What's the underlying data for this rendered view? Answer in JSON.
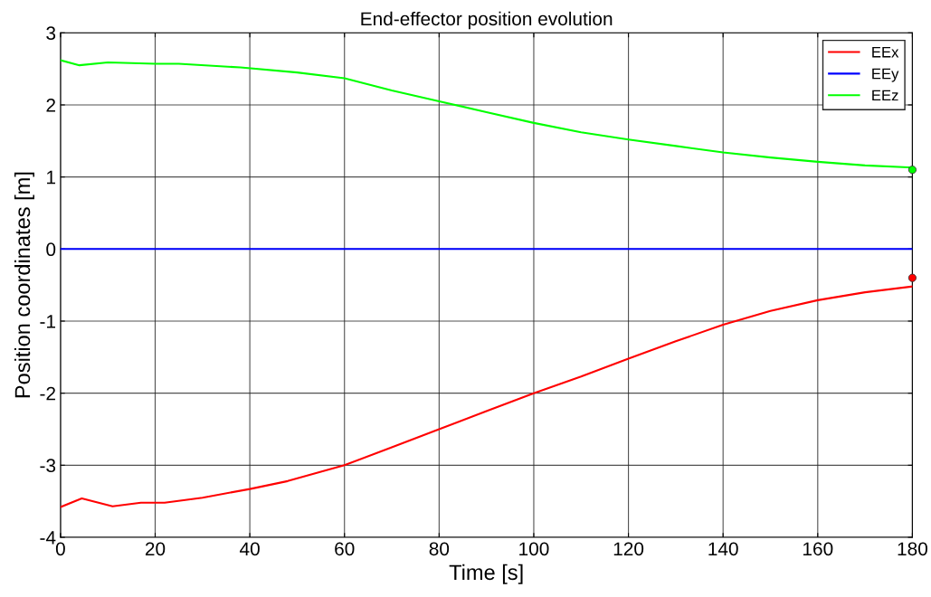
{
  "chart_data": {
    "type": "line",
    "title": "End-effector position evolution",
    "xlabel": "Time [s]",
    "ylabel": "Position coordinates [m]",
    "x": [
      0,
      4,
      10,
      20,
      25,
      38,
      50,
      60,
      70,
      80,
      90,
      100,
      110,
      120,
      130,
      140,
      150,
      160,
      170,
      180
    ],
    "series": [
      {
        "name": "EEx",
        "color": "#ff0000",
        "x": [
          0,
          4.5,
          11,
          17,
          22,
          30,
          40,
          48,
          60,
          70,
          80,
          90,
          100,
          110,
          120,
          130,
          140,
          150,
          160,
          170,
          180
        ],
        "values": [
          -3.58,
          -3.46,
          -3.57,
          -3.52,
          -3.52,
          -3.45,
          -3.33,
          -3.22,
          -3.0,
          -2.75,
          -2.5,
          -2.25,
          -2.0,
          -1.77,
          -1.52,
          -1.28,
          -1.05,
          -0.86,
          -0.71,
          -0.6,
          -0.52
        ]
      },
      {
        "name": "EEy",
        "color": "#0000ff",
        "values": [
          0,
          0,
          0,
          0,
          0,
          0,
          0,
          0,
          0,
          0,
          0,
          0,
          0,
          0,
          0,
          0,
          0,
          0,
          0,
          0
        ]
      },
      {
        "name": "EEz",
        "color": "#00ff00",
        "values": [
          2.62,
          2.55,
          2.59,
          2.57,
          2.57,
          2.52,
          2.45,
          2.37,
          2.2,
          2.05,
          1.9,
          1.75,
          1.62,
          1.52,
          1.43,
          1.34,
          1.27,
          1.21,
          1.16,
          1.13
        ]
      },
      {
        "type": "scatter",
        "color": "#00ff00",
        "x": [
          180
        ],
        "values": [
          1.1
        ],
        "marker": "circle"
      },
      {
        "type": "scatter",
        "color": "#ff0000",
        "x": [
          180
        ],
        "values": [
          -0.4
        ],
        "marker": "circle"
      }
    ],
    "xlim": [
      0,
      180
    ],
    "xticks": [
      0,
      20,
      40,
      60,
      80,
      100,
      120,
      140,
      160,
      180
    ],
    "ylim": [
      -4,
      3
    ],
    "yticks": [
      -4,
      -3,
      -2,
      -1,
      0,
      1,
      2,
      3
    ],
    "grid": true,
    "legend": "top right"
  }
}
